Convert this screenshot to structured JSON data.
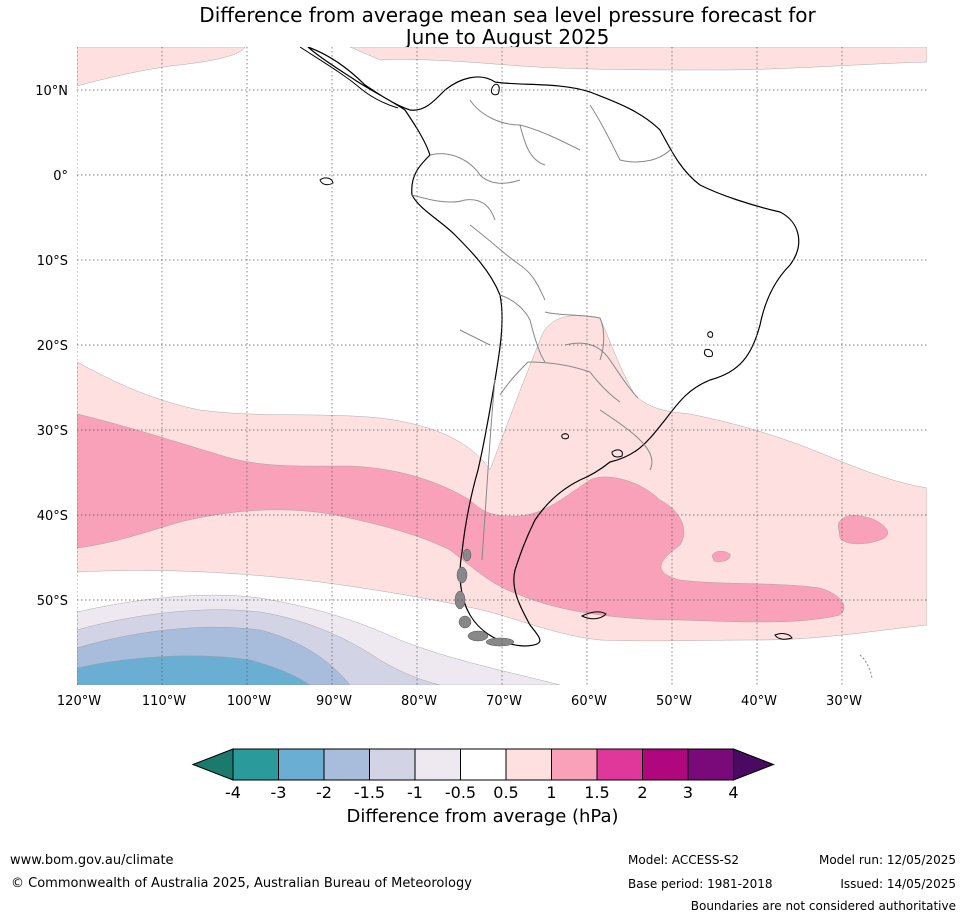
{
  "title": {
    "line1": "Difference from average mean sea level pressure forecast for",
    "line2": "June to August 2025"
  },
  "axes": {
    "lat_labels": [
      "10°N",
      "0°",
      "10°S",
      "20°S",
      "30°S",
      "40°S",
      "50°S"
    ],
    "lon_labels": [
      "120°W",
      "110°W",
      "100°W",
      "90°W",
      "80°W",
      "70°W",
      "60°W",
      "50°W",
      "40°W",
      "30°W"
    ]
  },
  "colorbar": {
    "title": "Difference from average (hPa)",
    "tick_labels": [
      "-4",
      "-3",
      "-2",
      "-1.5",
      "-1",
      "-0.5",
      "0.5",
      "1",
      "1.5",
      "2",
      "3",
      "4"
    ],
    "colors": [
      "#1a7a6e",
      "#2a9a9a",
      "#6aaed4",
      "#a8bcdc",
      "#d3d3e6",
      "#eee9f1",
      "#ffffff",
      "#fde0df",
      "#f9a1b9",
      "#e0389a",
      "#b0077e",
      "#7a0a7a",
      "#4a0a62"
    ]
  },
  "footer": {
    "website": "www.bom.gov.au/climate",
    "copyright": "© Commonwealth of Australia 2025, Australian Bureau of Meteorology",
    "model": "Model: ACCESS-S2",
    "base_period": "Base period: 1981-2018",
    "model_run": "Model run: 12/05/2025",
    "issued": "Issued: 14/05/2025",
    "disclaimer": "Boundaries are not considered authoritative"
  }
}
